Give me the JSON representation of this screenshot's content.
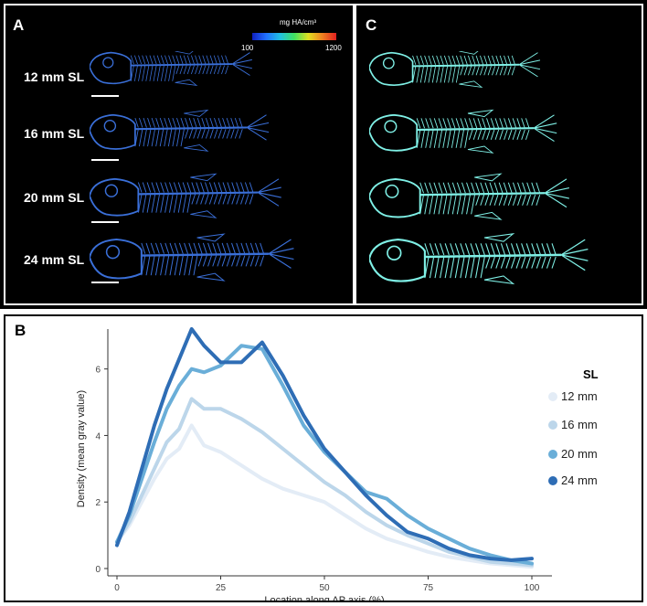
{
  "panels": {
    "a_label": "A",
    "b_label": "B",
    "c_label": "C"
  },
  "panel_a": {
    "colorbar_title": "mg HA/cm³",
    "colorbar_min": "100",
    "colorbar_max": "1200",
    "sl_labels": [
      "12 mm SL",
      "16 mm SL",
      "20 mm SL",
      "24 mm SL"
    ]
  },
  "colors": {
    "s12": "#e3ecf6",
    "s16": "#bcd6ea",
    "s20": "#6aaed8",
    "s24": "#2e6db5",
    "fish_a": "#3a6fd8",
    "fish_c": "#7ff0e6"
  },
  "chart_data": {
    "type": "line",
    "xlabel": "Location along AP axis (%)",
    "ylabel": "Density (mean gray value)",
    "xlim": [
      0,
      100
    ],
    "ylim": [
      0,
      7.2
    ],
    "xticks": [
      "0",
      "25",
      "50",
      "75",
      "100"
    ],
    "yticks": [
      "0",
      "2",
      "4",
      "6"
    ],
    "legend_title": "SL",
    "legend_position": "right",
    "grid": false,
    "x": [
      0,
      3,
      6,
      9,
      12,
      15,
      18,
      21,
      25,
      30,
      35,
      40,
      45,
      50,
      55,
      60,
      65,
      70,
      75,
      80,
      85,
      90,
      95,
      100
    ],
    "series": [
      {
        "name": "12 mm",
        "values": [
          0.8,
          1.3,
          2.0,
          2.7,
          3.3,
          3.6,
          4.3,
          3.7,
          3.5,
          3.1,
          2.7,
          2.4,
          2.2,
          2.0,
          1.6,
          1.2,
          0.9,
          0.7,
          0.5,
          0.35,
          0.25,
          0.15,
          0.1,
          0.05
        ]
      },
      {
        "name": "16 mm",
        "values": [
          0.8,
          1.4,
          2.2,
          3.0,
          3.8,
          4.2,
          5.1,
          4.8,
          4.8,
          4.5,
          4.1,
          3.6,
          3.1,
          2.6,
          2.2,
          1.7,
          1.3,
          1.0,
          0.75,
          0.5,
          0.35,
          0.2,
          0.15,
          0.1
        ]
      },
      {
        "name": "20 mm",
        "values": [
          0.8,
          1.6,
          2.7,
          3.8,
          4.8,
          5.5,
          6.0,
          5.9,
          6.1,
          6.7,
          6.6,
          5.5,
          4.3,
          3.5,
          2.9,
          2.3,
          2.1,
          1.6,
          1.2,
          0.9,
          0.6,
          0.4,
          0.25,
          0.15
        ]
      },
      {
        "name": "24 mm",
        "values": [
          0.7,
          1.7,
          3.0,
          4.3,
          5.4,
          6.3,
          7.2,
          6.7,
          6.2,
          6.2,
          6.8,
          5.8,
          4.6,
          3.6,
          2.9,
          2.2,
          1.6,
          1.1,
          0.9,
          0.6,
          0.4,
          0.3,
          0.25,
          0.3
        ]
      }
    ]
  }
}
